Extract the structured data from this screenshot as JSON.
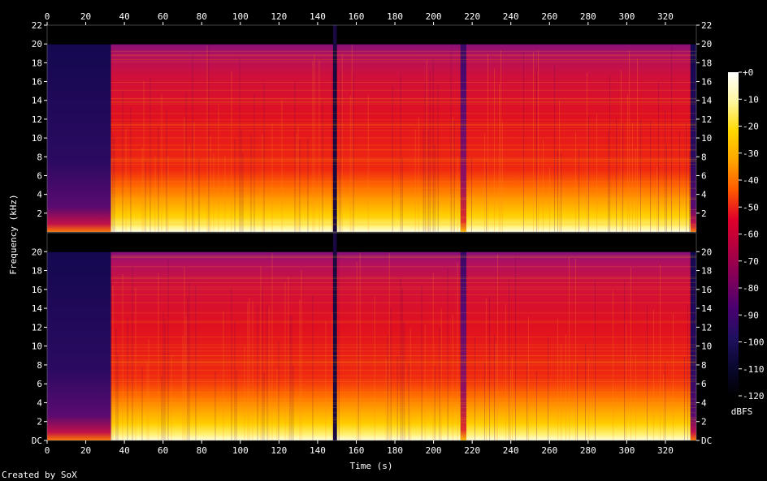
{
  "chart_data": {
    "type": "heatmap",
    "title": "",
    "xlabel": "Time (s)",
    "ylabel": "Frequency (kHz)",
    "xlim": [
      0,
      336
    ],
    "ylim": [
      0,
      22
    ],
    "x_ticks": [
      0,
      20,
      40,
      60,
      80,
      100,
      120,
      140,
      160,
      180,
      200,
      220,
      240,
      260,
      280,
      300,
      320
    ],
    "y_ticks_top": [
      "2",
      "4",
      "6",
      "8",
      "10",
      "12",
      "14",
      "16",
      "18",
      "20",
      "22"
    ],
    "y_ticks_bottom": [
      "DC",
      "2",
      "4",
      "6",
      "8",
      "10",
      "12",
      "14",
      "16",
      "18",
      "20"
    ],
    "channels": 2,
    "colorbar": {
      "label": "dBFS",
      "ticks": [
        "+0",
        "-10",
        "-20",
        "-30",
        "-40",
        "-50",
        "-60",
        "-70",
        "-80",
        "-90",
        "-100",
        "-110",
        "-120"
      ],
      "stops": [
        "#ffffff",
        "#fff7a0",
        "#ffd800",
        "#ffa500",
        "#ff5a00",
        "#e0002a",
        "#b00040",
        "#80005a",
        "#4a0070",
        "#201060",
        "#0a0830",
        "#000000"
      ]
    },
    "segments": [
      {
        "start": 0,
        "end": 33,
        "level": "quiet"
      },
      {
        "start": 33,
        "end": 148,
        "level": "loud"
      },
      {
        "start": 148,
        "end": 150,
        "level": "gap"
      },
      {
        "start": 150,
        "end": 214,
        "level": "loud"
      },
      {
        "start": 214,
        "end": 217,
        "level": "dip"
      },
      {
        "start": 217,
        "end": 333,
        "level": "loud"
      },
      {
        "start": 333,
        "end": 336,
        "level": "fade"
      }
    ],
    "cutoff_khz": 20
  },
  "footer": {
    "credit": "Created by SoX"
  }
}
